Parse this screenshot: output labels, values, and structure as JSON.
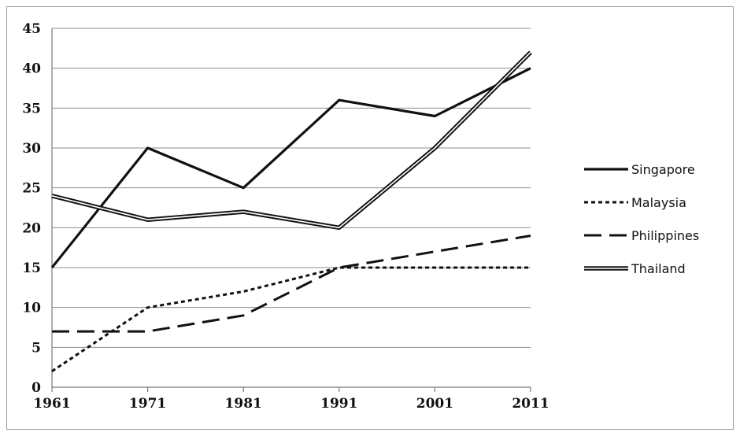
{
  "chart_data": {
    "type": "line",
    "title": "",
    "xlabel": "",
    "ylabel": "",
    "categories": [
      "1961",
      "1971",
      "1981",
      "1991",
      "2001",
      "2011"
    ],
    "ylim": [
      0,
      45
    ],
    "yticks": [
      "0",
      "5",
      "10",
      "15",
      "20",
      "25",
      "30",
      "35",
      "40",
      "45"
    ],
    "grid": "horizontal",
    "legend_position": "right",
    "series": [
      {
        "name": "Singapore",
        "style": "solid",
        "values": [
          15,
          30,
          25,
          36,
          34,
          40
        ]
      },
      {
        "name": "Malaysia",
        "style": "dotted",
        "values": [
          2,
          10,
          12,
          15,
          15,
          15
        ]
      },
      {
        "name": "Philippines",
        "style": "long-dash",
        "values": [
          7,
          7,
          9,
          15,
          17,
          19
        ]
      },
      {
        "name": "Thailand",
        "style": "double-line",
        "values": [
          24,
          21,
          22,
          20,
          30,
          42
        ]
      }
    ]
  }
}
